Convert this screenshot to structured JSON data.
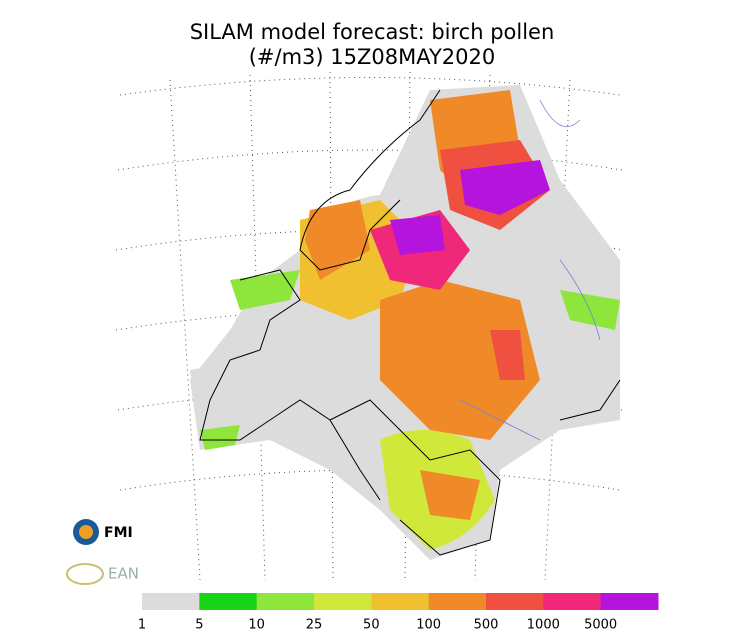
{
  "header": {
    "title": "SILAM model forecast: birch pollen",
    "subtitle": "(#/m3) 15Z08MAY2020"
  },
  "logos": [
    "FMI",
    "EAN"
  ],
  "legend": {
    "levels": [
      1,
      5,
      10,
      25,
      50,
      100,
      500,
      1000,
      5000
    ],
    "colors": [
      "#dcdcdc",
      "#18d418",
      "#8ee63c",
      "#cfe83a",
      "#f0c030",
      "#f08a28",
      "#f05040",
      "#f0287a",
      "#b414dc"
    ]
  }
}
